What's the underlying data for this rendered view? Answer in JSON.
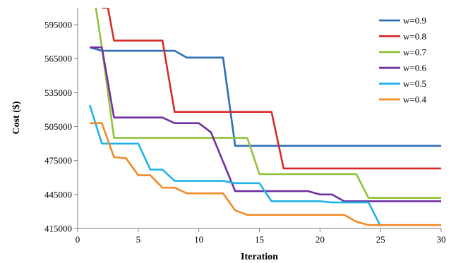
{
  "chart_data": {
    "type": "line",
    "title": "",
    "xlabel": "Iteration",
    "ylabel": "Cost ($)",
    "xlim": [
      0,
      30
    ],
    "ylim": [
      415000,
      610000
    ],
    "x_ticks": [
      0,
      5,
      10,
      15,
      20,
      25,
      30
    ],
    "x_tick_labels": [
      "0",
      "5",
      "10",
      "15",
      "20",
      "25",
      "30"
    ],
    "y_ticks": [
      415000,
      445000,
      475000,
      505000,
      535000,
      565000,
      595000
    ],
    "y_tick_labels": [
      "415000",
      "445000",
      "475000",
      "505000",
      "535000",
      "565000",
      "595000"
    ],
    "grid": false,
    "legend_position": "top-right",
    "series": [
      {
        "name": "w=0.9",
        "color": "#2e6db4",
        "points": [
          [
            1,
            575000
          ],
          [
            2,
            572000
          ],
          [
            3,
            572000
          ],
          [
            4,
            572000
          ],
          [
            5,
            572000
          ],
          [
            6,
            572000
          ],
          [
            7,
            572000
          ],
          [
            8,
            572000
          ],
          [
            9,
            566000
          ],
          [
            10,
            566000
          ],
          [
            11,
            566000
          ],
          [
            12,
            566000
          ],
          [
            13,
            488000
          ],
          [
            14,
            488000
          ],
          [
            15,
            488000
          ],
          [
            16,
            488000
          ],
          [
            17,
            488000
          ],
          [
            18,
            488000
          ],
          [
            19,
            488000
          ],
          [
            20,
            488000
          ],
          [
            21,
            488000
          ],
          [
            22,
            488000
          ],
          [
            23,
            488000
          ],
          [
            24,
            488000
          ],
          [
            25,
            488000
          ],
          [
            26,
            488000
          ],
          [
            27,
            488000
          ],
          [
            28,
            488000
          ],
          [
            29,
            488000
          ],
          [
            30,
            488000
          ]
        ]
      },
      {
        "name": "w=0.8",
        "color": "#d62a2a",
        "points": [
          [
            2,
            610000
          ],
          [
            2.5,
            610000
          ],
          [
            3,
            581000
          ],
          [
            4,
            581000
          ],
          [
            5,
            581000
          ],
          [
            6,
            581000
          ],
          [
            7,
            581000
          ],
          [
            8,
            518000
          ],
          [
            9,
            518000
          ],
          [
            10,
            518000
          ],
          [
            11,
            518000
          ],
          [
            12,
            518000
          ],
          [
            13,
            518000
          ],
          [
            14,
            518000
          ],
          [
            15,
            518000
          ],
          [
            16,
            518000
          ],
          [
            17,
            468000
          ],
          [
            18,
            468000
          ],
          [
            19,
            468000
          ],
          [
            20,
            468000
          ],
          [
            21,
            468000
          ],
          [
            22,
            468000
          ],
          [
            23,
            468000
          ],
          [
            24,
            468000
          ],
          [
            25,
            468000
          ],
          [
            26,
            468000
          ],
          [
            27,
            468000
          ],
          [
            28,
            468000
          ],
          [
            29,
            468000
          ],
          [
            30,
            468000
          ]
        ]
      },
      {
        "name": "w=0.7",
        "color": "#92c23e",
        "points": [
          [
            1.5,
            610000
          ],
          [
            2,
            575000
          ],
          [
            3,
            495000
          ],
          [
            4,
            495000
          ],
          [
            5,
            495000
          ],
          [
            6,
            495000
          ],
          [
            7,
            495000
          ],
          [
            8,
            495000
          ],
          [
            9,
            495000
          ],
          [
            10,
            495000
          ],
          [
            11,
            495000
          ],
          [
            12,
            495000
          ],
          [
            13,
            495000
          ],
          [
            14,
            495000
          ],
          [
            15,
            463000
          ],
          [
            16,
            463000
          ],
          [
            17,
            463000
          ],
          [
            18,
            463000
          ],
          [
            19,
            463000
          ],
          [
            20,
            463000
          ],
          [
            21,
            463000
          ],
          [
            22,
            463000
          ],
          [
            23,
            463000
          ],
          [
            24,
            442000
          ],
          [
            25,
            442000
          ],
          [
            26,
            442000
          ],
          [
            27,
            442000
          ],
          [
            28,
            442000
          ],
          [
            29,
            442000
          ],
          [
            30,
            442000
          ]
        ]
      },
      {
        "name": "w=0.6",
        "color": "#7030a0",
        "points": [
          [
            1,
            575000
          ],
          [
            2,
            575000
          ],
          [
            3,
            513000
          ],
          [
            4,
            513000
          ],
          [
            5,
            513000
          ],
          [
            6,
            513000
          ],
          [
            7,
            513000
          ],
          [
            8,
            508000
          ],
          [
            9,
            508000
          ],
          [
            10,
            508000
          ],
          [
            11,
            500000
          ],
          [
            12,
            474000
          ],
          [
            13,
            448000
          ],
          [
            14,
            448000
          ],
          [
            15,
            448000
          ],
          [
            16,
            448000
          ],
          [
            17,
            448000
          ],
          [
            18,
            448000
          ],
          [
            19,
            448000
          ],
          [
            20,
            445000
          ],
          [
            21,
            445000
          ],
          [
            22,
            439000
          ],
          [
            23,
            439000
          ],
          [
            24,
            439000
          ],
          [
            25,
            439000
          ],
          [
            26,
            439000
          ],
          [
            27,
            439000
          ],
          [
            28,
            439000
          ],
          [
            29,
            439000
          ],
          [
            30,
            439000
          ]
        ]
      },
      {
        "name": "w=0.5",
        "color": "#1fb3e6",
        "points": [
          [
            1,
            524000
          ],
          [
            2,
            490000
          ],
          [
            3,
            490000
          ],
          [
            4,
            490000
          ],
          [
            5,
            490000
          ],
          [
            6,
            467000
          ],
          [
            7,
            467000
          ],
          [
            8,
            457000
          ],
          [
            9,
            457000
          ],
          [
            10,
            457000
          ],
          [
            11,
            457000
          ],
          [
            12,
            457000
          ],
          [
            13,
            455000
          ],
          [
            14,
            455000
          ],
          [
            15,
            455000
          ],
          [
            16,
            439000
          ],
          [
            17,
            439000
          ],
          [
            18,
            439000
          ],
          [
            19,
            439000
          ],
          [
            20,
            439000
          ],
          [
            21,
            438000
          ],
          [
            22,
            438000
          ],
          [
            23,
            438000
          ],
          [
            24,
            438000
          ],
          [
            25,
            417000
          ]
        ]
      },
      {
        "name": "w=0.4",
        "color": "#f28a2a",
        "points": [
          [
            1,
            508000
          ],
          [
            2,
            508000
          ],
          [
            3,
            478000
          ],
          [
            4,
            477000
          ],
          [
            5,
            462000
          ],
          [
            6,
            462000
          ],
          [
            7,
            451000
          ],
          [
            8,
            451000
          ],
          [
            9,
            446000
          ],
          [
            10,
            446000
          ],
          [
            11,
            446000
          ],
          [
            12,
            446000
          ],
          [
            13,
            431000
          ],
          [
            14,
            427000
          ],
          [
            15,
            427000
          ],
          [
            16,
            427000
          ],
          [
            17,
            427000
          ],
          [
            18,
            427000
          ],
          [
            19,
            427000
          ],
          [
            20,
            427000
          ],
          [
            21,
            427000
          ],
          [
            22,
            427000
          ],
          [
            23,
            421000
          ],
          [
            24,
            418000
          ],
          [
            25,
            418000
          ],
          [
            26,
            418000
          ],
          [
            27,
            418000
          ],
          [
            28,
            418000
          ],
          [
            29,
            418000
          ],
          [
            30,
            418000
          ]
        ]
      }
    ]
  }
}
